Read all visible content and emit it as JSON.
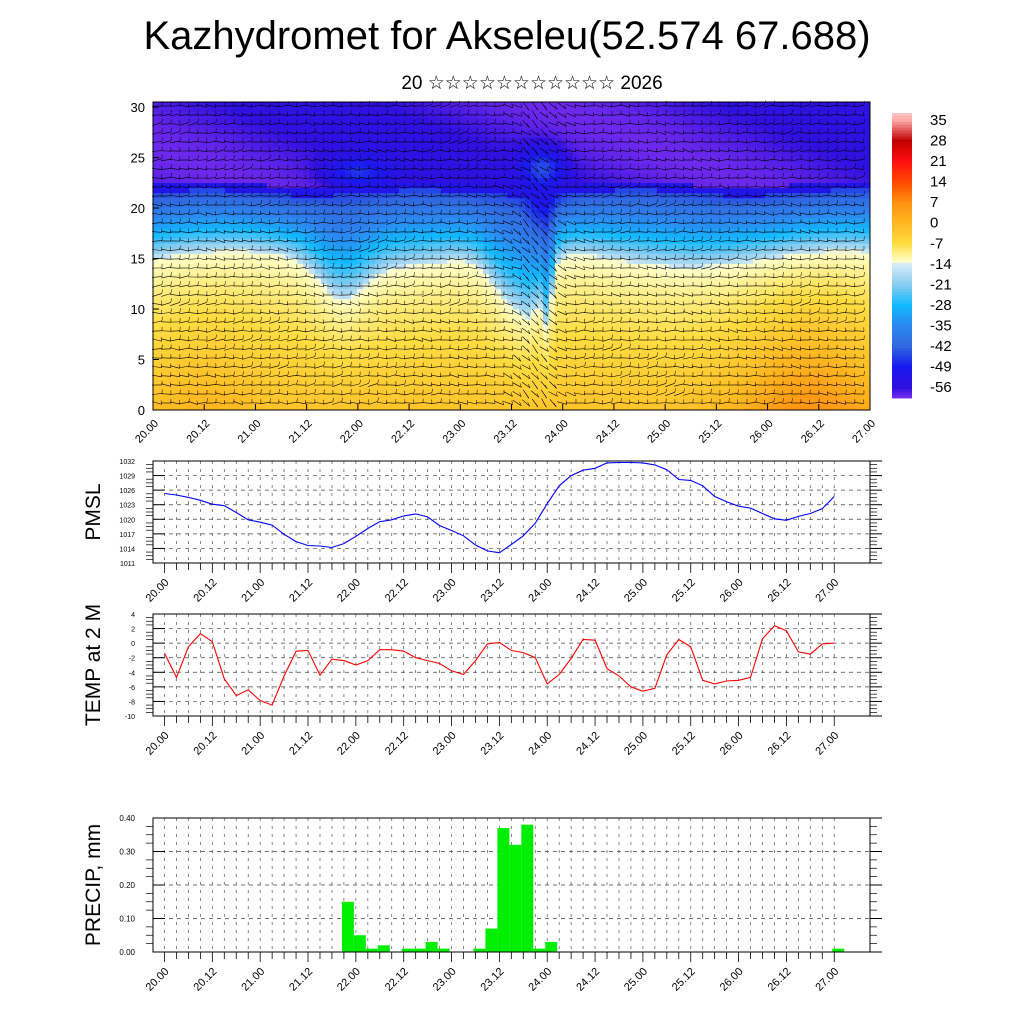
{
  "title": "Kazhydromet for Akseleu(52.574 67.688)",
  "subtitle": "20 ☆☆☆☆☆☆☆☆☆☆☆ 2026",
  "x_labels": [
    "20.00",
    "20.12",
    "21.00",
    "21.12",
    "22.00",
    "22.12",
    "23.00",
    "23.12",
    "24.00",
    "24.12",
    "25.00",
    "25.12",
    "26.00",
    "26.12",
    "27.00"
  ],
  "chart_data": [
    {
      "type": "heatmap",
      "name": "cross-section",
      "title": "",
      "ylabel": "",
      "ylim": [
        0,
        30
      ],
      "yticks": [
        0,
        5,
        10,
        15,
        20,
        25,
        30
      ],
      "colorbar": {
        "labels": [
          "35",
          "28",
          "21",
          "14",
          "7",
          "0",
          "-7",
          "-14",
          "-21",
          "-28",
          "-35",
          "-42",
          "-49",
          "-56"
        ],
        "range": [
          -60,
          37
        ]
      },
      "colors": {
        "warm": "#ffc020",
        "cold": "#3080f0",
        "barbs": "#000000"
      }
    },
    {
      "type": "line",
      "name": "pmsl",
      "ylabel": "PMSL",
      "ylim": [
        1011,
        1032
      ],
      "yticks": [
        1011,
        1014,
        1017,
        1020,
        1023,
        1026,
        1029,
        1032
      ],
      "step_hours": 3,
      "color": "#0000ff",
      "values": [
        1025.3,
        1025.0,
        1024.5,
        1023.9,
        1023.1,
        1022.8,
        1021.4,
        1019.9,
        1019.4,
        1018.8,
        1016.9,
        1015.4,
        1014.6,
        1014.5,
        1014.2,
        1015.0,
        1016.5,
        1018.1,
        1019.5,
        1019.9,
        1020.7,
        1021.1,
        1020.5,
        1018.7,
        1017.7,
        1016.6,
        1014.7,
        1013.5,
        1013.1,
        1014.8,
        1016.6,
        1019.2,
        1023.2,
        1026.9,
        1029.0,
        1030.1,
        1030.5,
        1031.6,
        1031.7,
        1031.7,
        1031.6,
        1031.2,
        1030.2,
        1028.2,
        1028.0,
        1026.9,
        1024.7,
        1023.6,
        1022.7,
        1022.3,
        1021.2,
        1020.1,
        1019.8,
        1020.6,
        1021.2,
        1022.2,
        1024.7
      ]
    },
    {
      "type": "line",
      "name": "temp-2m",
      "ylabel": "TEMP at 2 M",
      "ylim": [
        -10,
        4
      ],
      "yticks": [
        -10,
        -8,
        -6,
        -4,
        -2,
        0,
        2,
        4
      ],
      "step_hours": 3,
      "color": "#ff0000",
      "values": [
        -1.4,
        -4.7,
        -0.5,
        1.3,
        0.2,
        -4.9,
        -7.2,
        -6.4,
        -7.9,
        -8.5,
        -4.5,
        -1.1,
        -1.0,
        -4.4,
        -2.2,
        -2.4,
        -3.0,
        -2.4,
        -0.9,
        -0.9,
        -1.1,
        -2.0,
        -2.4,
        -2.8,
        -3.8,
        -4.3,
        -2.4,
        -0.1,
        0.1,
        -1.0,
        -1.3,
        -2.0,
        -5.6,
        -4.3,
        -2.1,
        0.5,
        0.4,
        -3.5,
        -4.5,
        -6.0,
        -6.6,
        -6.2,
        -1.6,
        0.5,
        -0.5,
        -5.1,
        -5.6,
        -5.2,
        -5.1,
        -4.7,
        0.6,
        2.4,
        1.7,
        -1.2,
        -1.5,
        -0.1,
        0.0
      ]
    },
    {
      "type": "bar",
      "name": "precip",
      "ylabel": "PRECIP, mm",
      "ylim": [
        0,
        0.4
      ],
      "yticks": [
        "0.00",
        "0.10",
        "0.20",
        "0.30",
        "0.40"
      ],
      "step_hours": 3,
      "color": "#00ee00",
      "values": [
        0,
        0,
        0,
        0,
        0,
        0,
        0,
        0,
        0,
        0,
        0,
        0,
        0,
        0,
        0,
        0.15,
        0.05,
        0.01,
        0.02,
        0,
        0.01,
        0.01,
        0.03,
        0.01,
        0,
        0,
        0.01,
        0.07,
        0.37,
        0.32,
        0.38,
        0.01,
        0.03,
        0,
        0,
        0,
        0,
        0,
        0,
        0,
        0,
        0,
        0,
        0,
        0,
        0,
        0,
        0,
        0,
        0,
        0,
        0,
        0,
        0,
        0,
        0,
        0.01
      ]
    }
  ]
}
